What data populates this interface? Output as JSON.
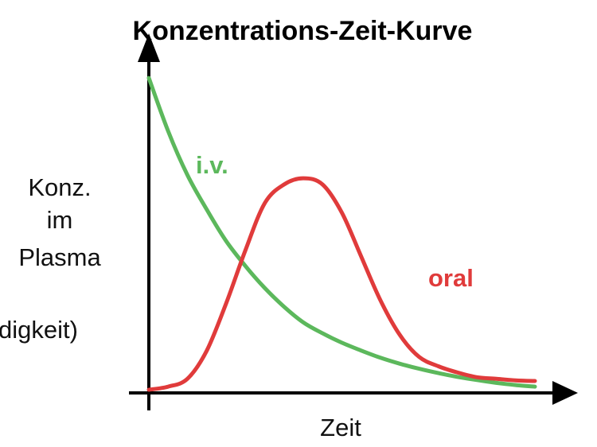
{
  "chart_data": {
    "type": "line",
    "title": "Konzentrations-Zeit-Kurve",
    "ylabel_lines": [
      "Konz.",
      "im",
      "Plasma",
      "digkeit)"
    ],
    "xlabel": "Zeit",
    "series": [
      {
        "name": "i.v.",
        "color": "#5cb85c",
        "x": [
          0,
          0.05,
          0.1,
          0.15,
          0.2,
          0.25,
          0.3,
          0.35,
          0.4,
          0.45,
          0.5,
          0.55,
          0.6,
          0.65,
          0.7,
          0.75,
          0.8,
          0.85,
          0.9,
          0.95,
          1.0
        ],
        "y": [
          1.0,
          0.83,
          0.69,
          0.58,
          0.48,
          0.4,
          0.33,
          0.27,
          0.22,
          0.185,
          0.155,
          0.13,
          0.107,
          0.088,
          0.072,
          0.058,
          0.046,
          0.036,
          0.027,
          0.02,
          0.015
        ]
      },
      {
        "name": "oral",
        "color": "#e03b3b",
        "x": [
          0,
          0.05,
          0.1,
          0.15,
          0.2,
          0.25,
          0.3,
          0.35,
          0.4,
          0.45,
          0.5,
          0.55,
          0.6,
          0.65,
          0.7,
          0.75,
          0.8,
          0.85,
          0.9,
          0.95,
          1.0
        ],
        "y": [
          0.005,
          0.015,
          0.04,
          0.13,
          0.28,
          0.45,
          0.6,
          0.66,
          0.68,
          0.66,
          0.57,
          0.43,
          0.29,
          0.18,
          0.11,
          0.08,
          0.06,
          0.045,
          0.04,
          0.035,
          0.033
        ]
      }
    ],
    "xlim": [
      0,
      1
    ],
    "ylim": [
      0,
      1
    ],
    "grid": false
  }
}
